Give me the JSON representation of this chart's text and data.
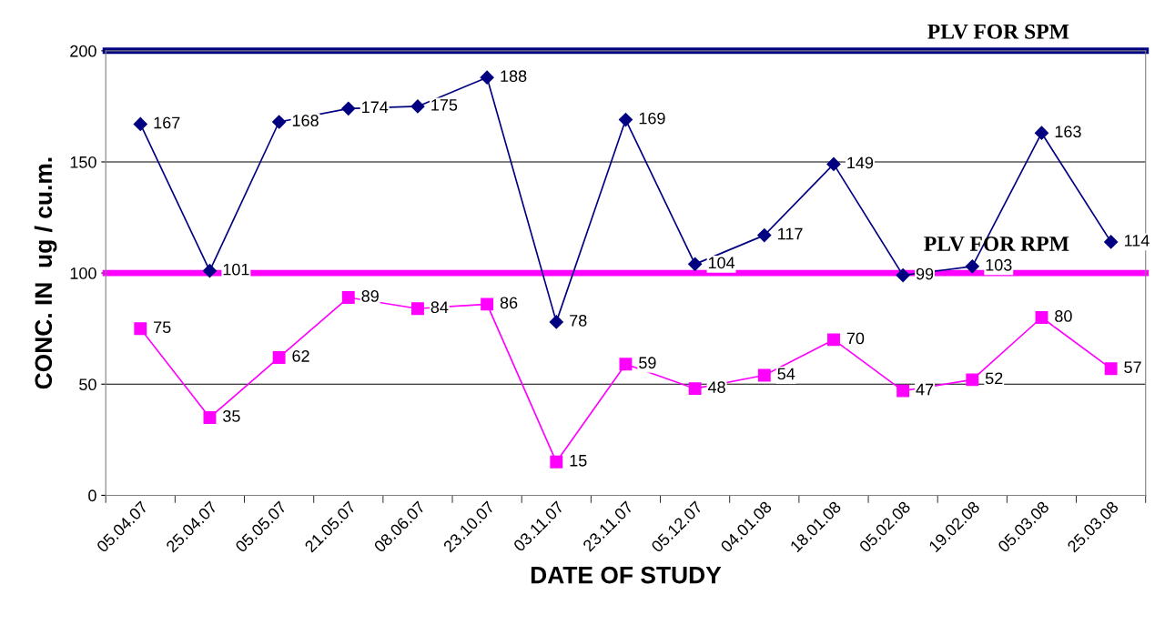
{
  "chart_data": {
    "type": "line",
    "xlabel": "DATE OF STUDY",
    "ylabel": "CONC. IN  ug / cu.m.",
    "categories": [
      "05.04.07",
      "25.04.07",
      "05.05.07",
      "21.05.07",
      "08.06.07",
      "23.10.07",
      "03.11.07",
      "23.11.07",
      "05.12.07",
      "04.01.08",
      "18.01.08",
      "05.02.08",
      "19.02.08",
      "05.03.08",
      "25.03.08"
    ],
    "series": [
      {
        "color": "#000080",
        "marker": "diamond",
        "values": [
          167,
          101,
          168,
          174,
          175,
          188,
          78,
          169,
          104,
          117,
          149,
          99,
          103,
          163,
          114
        ]
      },
      {
        "color": "#ff00ff",
        "marker": "square",
        "values": [
          75,
          35,
          62,
          89,
          84,
          86,
          15,
          59,
          48,
          54,
          70,
          47,
          52,
          80,
          57
        ]
      }
    ],
    "ylim": [
      0,
      200
    ],
    "yticks": [
      0,
      50,
      100,
      150,
      200
    ],
    "grid": "y",
    "data_labels": true,
    "ref_lines": [
      {
        "axis": "y",
        "value": 200,
        "label": "PLV FOR SPM",
        "color": "#000080"
      },
      {
        "axis": "y",
        "value": 100,
        "label": "PLV FOR RPM",
        "color": "#ff00ff"
      }
    ]
  }
}
